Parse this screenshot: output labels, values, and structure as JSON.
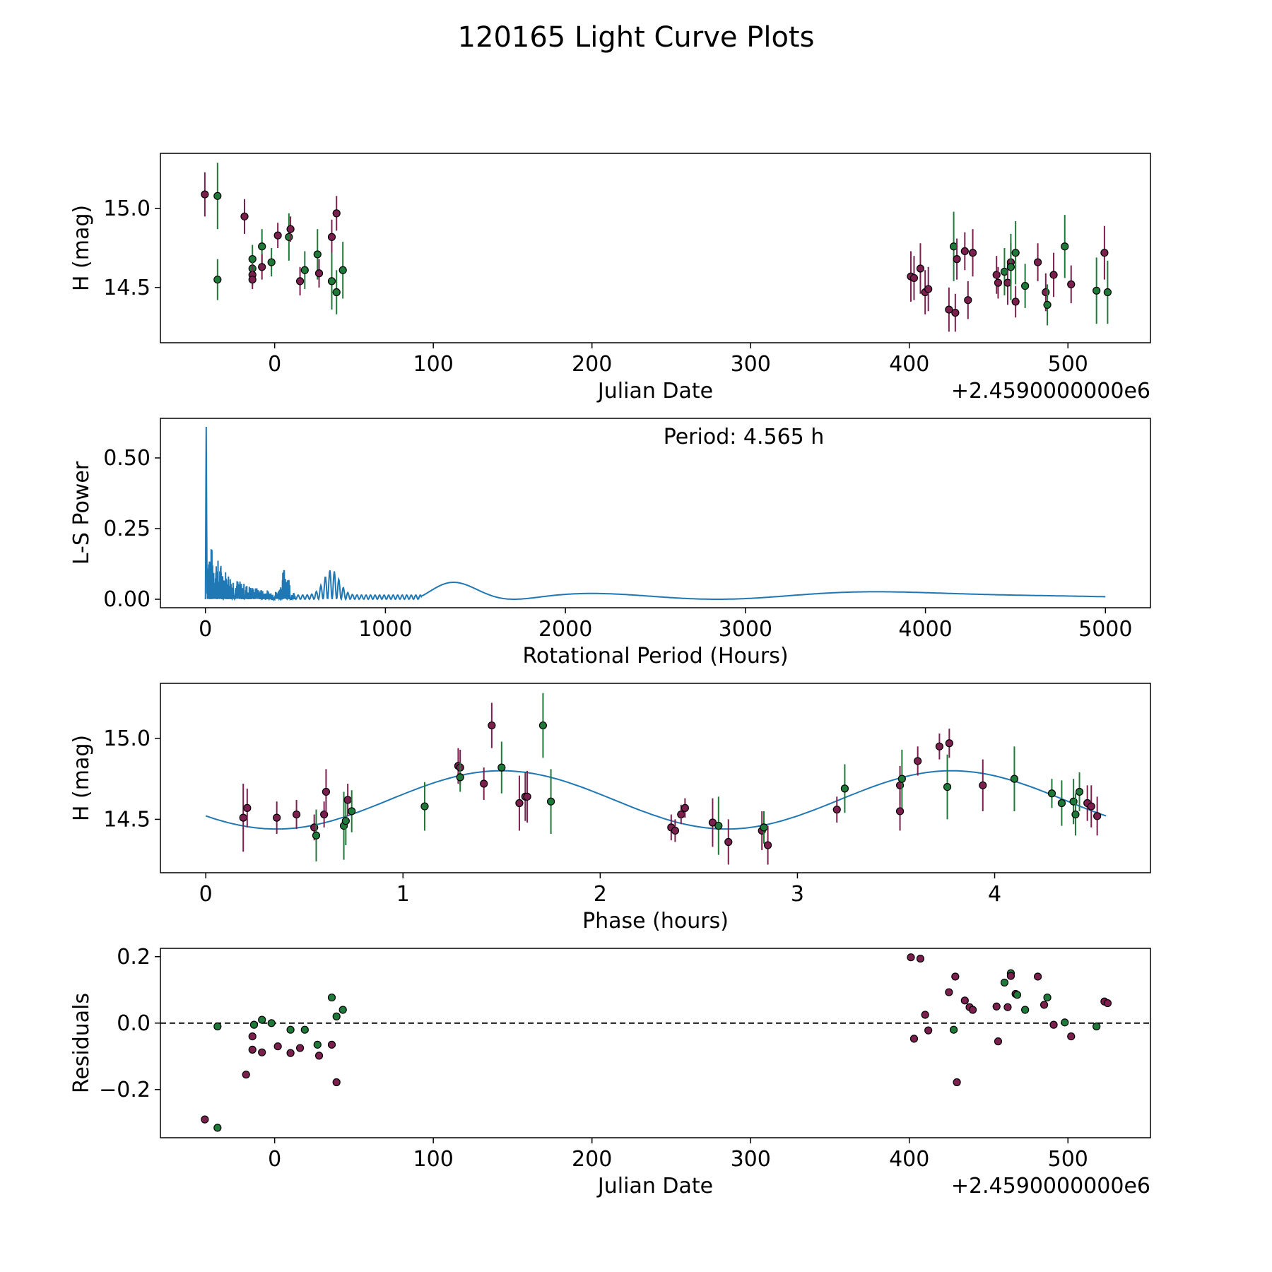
{
  "figure_title": "120165 Light Curve Plots",
  "colors": {
    "purple": "#7b1f4f",
    "green": "#1f7a3a",
    "line": "#1f77b4",
    "frame": "#000000"
  },
  "chart_data": [
    {
      "type": "scatter",
      "id": "lightcurve",
      "xlabel": "Julian Date",
      "ylabel": "H (mag)",
      "offset_label": "+2.4590000000e6",
      "xlim": [
        -72,
        552
      ],
      "ylim": [
        14.15,
        15.35
      ],
      "xticks": [
        0,
        100,
        200,
        300,
        400,
        500
      ],
      "yticks": [
        14.5,
        15.0
      ],
      "ytick_labels": [
        "14.5",
        "15.0"
      ],
      "points": [
        {
          "x": -44,
          "y": 15.09,
          "err": 0.14,
          "c": "purple"
        },
        {
          "x": -36,
          "y": 15.08,
          "err": 0.21,
          "c": "green"
        },
        {
          "x": -36,
          "y": 14.55,
          "err": 0.13,
          "c": "green"
        },
        {
          "x": -19,
          "y": 14.95,
          "err": 0.11,
          "c": "purple"
        },
        {
          "x": -14,
          "y": 14.68,
          "err": 0.09,
          "c": "green"
        },
        {
          "x": -14,
          "y": 14.62,
          "err": 0.08,
          "c": "green"
        },
        {
          "x": -14,
          "y": 14.58,
          "err": 0.07,
          "c": "purple"
        },
        {
          "x": -14,
          "y": 14.55,
          "err": 0.06,
          "c": "purple"
        },
        {
          "x": -8,
          "y": 14.76,
          "err": 0.11,
          "c": "green"
        },
        {
          "x": -8,
          "y": 14.63,
          "err": 0.08,
          "c": "purple"
        },
        {
          "x": -2,
          "y": 14.66,
          "err": 0.09,
          "c": "green"
        },
        {
          "x": 2,
          "y": 14.83,
          "err": 0.08,
          "c": "purple"
        },
        {
          "x": 9,
          "y": 14.82,
          "err": 0.15,
          "c": "green"
        },
        {
          "x": 10,
          "y": 14.87,
          "err": 0.08,
          "c": "purple"
        },
        {
          "x": 16,
          "y": 14.54,
          "err": 0.09,
          "c": "purple"
        },
        {
          "x": 19,
          "y": 14.61,
          "err": 0.12,
          "c": "green"
        },
        {
          "x": 27,
          "y": 14.71,
          "err": 0.16,
          "c": "green"
        },
        {
          "x": 28,
          "y": 14.59,
          "err": 0.09,
          "c": "purple"
        },
        {
          "x": 36,
          "y": 14.82,
          "err": 0.11,
          "c": "purple"
        },
        {
          "x": 36,
          "y": 14.54,
          "err": 0.18,
          "c": "green"
        },
        {
          "x": 39,
          "y": 14.47,
          "err": 0.14,
          "c": "green"
        },
        {
          "x": 39,
          "y": 14.97,
          "err": 0.11,
          "c": "purple"
        },
        {
          "x": 43,
          "y": 14.61,
          "err": 0.18,
          "c": "green"
        },
        {
          "x": 401,
          "y": 14.57,
          "err": 0.16,
          "c": "purple"
        },
        {
          "x": 403,
          "y": 14.56,
          "err": 0.14,
          "c": "purple"
        },
        {
          "x": 407,
          "y": 14.62,
          "err": 0.16,
          "c": "purple"
        },
        {
          "x": 410,
          "y": 14.47,
          "err": 0.14,
          "c": "purple"
        },
        {
          "x": 412,
          "y": 14.49,
          "err": 0.14,
          "c": "purple"
        },
        {
          "x": 425,
          "y": 14.36,
          "err": 0.14,
          "c": "purple"
        },
        {
          "x": 428,
          "y": 14.76,
          "err": 0.22,
          "c": "green"
        },
        {
          "x": 429,
          "y": 14.34,
          "err": 0.12,
          "c": "purple"
        },
        {
          "x": 430,
          "y": 14.68,
          "err": 0.13,
          "c": "purple"
        },
        {
          "x": 435,
          "y": 14.73,
          "err": 0.12,
          "c": "purple"
        },
        {
          "x": 437,
          "y": 14.42,
          "err": 0.12,
          "c": "purple"
        },
        {
          "x": 440,
          "y": 14.72,
          "err": 0.15,
          "c": "purple"
        },
        {
          "x": 455,
          "y": 14.58,
          "err": 0.12,
          "c": "purple"
        },
        {
          "x": 456,
          "y": 14.53,
          "err": 0.1,
          "c": "purple"
        },
        {
          "x": 460,
          "y": 14.6,
          "err": 0.15,
          "c": "green"
        },
        {
          "x": 462,
          "y": 14.53,
          "err": 0.14,
          "c": "purple"
        },
        {
          "x": 464,
          "y": 14.66,
          "err": 0.12,
          "c": "purple"
        },
        {
          "x": 464,
          "y": 14.63,
          "err": 0.21,
          "c": "green"
        },
        {
          "x": 467,
          "y": 14.41,
          "err": 0.1,
          "c": "purple"
        },
        {
          "x": 467,
          "y": 14.72,
          "err": 0.2,
          "c": "green"
        },
        {
          "x": 473,
          "y": 14.51,
          "err": 0.14,
          "c": "green"
        },
        {
          "x": 481,
          "y": 14.66,
          "err": 0.12,
          "c": "purple"
        },
        {
          "x": 486,
          "y": 14.47,
          "err": 0.12,
          "c": "purple"
        },
        {
          "x": 487,
          "y": 14.39,
          "err": 0.13,
          "c": "green"
        },
        {
          "x": 491,
          "y": 14.58,
          "err": 0.14,
          "c": "purple"
        },
        {
          "x": 498,
          "y": 14.76,
          "err": 0.2,
          "c": "green"
        },
        {
          "x": 502,
          "y": 14.52,
          "err": 0.12,
          "c": "purple"
        },
        {
          "x": 518,
          "y": 14.48,
          "err": 0.21,
          "c": "green"
        },
        {
          "x": 523,
          "y": 14.72,
          "err": 0.17,
          "c": "purple"
        },
        {
          "x": 525,
          "y": 14.47,
          "err": 0.2,
          "c": "green"
        }
      ]
    },
    {
      "type": "line",
      "id": "periodogram",
      "xlabel": "Rotational Period (Hours)",
      "ylabel": "L-S Power",
      "annotation": "Period: 4.565 h",
      "xlim": [
        -250,
        5250
      ],
      "ylim": [
        -0.03,
        0.64
      ],
      "xticks": [
        0,
        1000,
        2000,
        3000,
        4000,
        5000
      ],
      "yticks": [
        0.0,
        0.25,
        0.5
      ],
      "ytick_labels": [
        "0.00",
        "0.25",
        "0.50"
      ],
      "series": [
        {
          "name": "Lomb-Scargle power",
          "peak": {
            "x": 4.565,
            "y": 0.61
          },
          "x_range": [
            1,
            5000
          ]
        }
      ]
    },
    {
      "type": "scatter",
      "id": "phased",
      "xlabel": "Phase (hours)",
      "ylabel": "H (mag)",
      "xlim": [
        -0.23,
        4.79
      ],
      "ylim": [
        14.17,
        15.34
      ],
      "xticks": [
        0,
        1,
        2,
        3,
        4
      ],
      "yticks": [
        14.5,
        15.0
      ],
      "ytick_labels": [
        "14.5",
        "15.0"
      ],
      "model": {
        "period_hours": 4.565,
        "mean": 14.62,
        "amplitude": 0.18,
        "peak_phase": 1.5
      },
      "points": [
        {
          "x": 0.19,
          "y": 14.51,
          "err": 0.21,
          "c": "purple"
        },
        {
          "x": 0.21,
          "y": 14.57,
          "err": 0.12,
          "c": "purple"
        },
        {
          "x": 0.36,
          "y": 14.51,
          "err": 0.1,
          "c": "purple"
        },
        {
          "x": 0.46,
          "y": 14.53,
          "err": 0.09,
          "c": "purple"
        },
        {
          "x": 0.55,
          "y": 14.45,
          "err": 0.08,
          "c": "purple"
        },
        {
          "x": 0.56,
          "y": 14.4,
          "err": 0.16,
          "c": "green"
        },
        {
          "x": 0.6,
          "y": 14.53,
          "err": 0.08,
          "c": "purple"
        },
        {
          "x": 0.61,
          "y": 14.67,
          "err": 0.14,
          "c": "purple"
        },
        {
          "x": 0.7,
          "y": 14.46,
          "err": 0.21,
          "c": "green"
        },
        {
          "x": 0.71,
          "y": 14.49,
          "err": 0.15,
          "c": "green"
        },
        {
          "x": 0.72,
          "y": 14.62,
          "err": 0.1,
          "c": "purple"
        },
        {
          "x": 0.74,
          "y": 14.55,
          "err": 0.13,
          "c": "green"
        },
        {
          "x": 1.11,
          "y": 14.58,
          "err": 0.15,
          "c": "green"
        },
        {
          "x": 1.28,
          "y": 14.83,
          "err": 0.11,
          "c": "purple"
        },
        {
          "x": 1.29,
          "y": 14.82,
          "err": 0.11,
          "c": "purple"
        },
        {
          "x": 1.29,
          "y": 14.76,
          "err": 0.09,
          "c": "green"
        },
        {
          "x": 1.41,
          "y": 14.72,
          "err": 0.1,
          "c": "purple"
        },
        {
          "x": 1.45,
          "y": 15.08,
          "err": 0.14,
          "c": "purple"
        },
        {
          "x": 1.5,
          "y": 14.82,
          "err": 0.16,
          "c": "green"
        },
        {
          "x": 1.59,
          "y": 14.6,
          "err": 0.17,
          "c": "purple"
        },
        {
          "x": 1.62,
          "y": 14.64,
          "err": 0.15,
          "c": "purple"
        },
        {
          "x": 1.63,
          "y": 14.64,
          "err": 0.16,
          "c": "purple"
        },
        {
          "x": 1.71,
          "y": 15.08,
          "err": 0.2,
          "c": "green"
        },
        {
          "x": 1.75,
          "y": 14.61,
          "err": 0.2,
          "c": "green"
        },
        {
          "x": 2.36,
          "y": 14.45,
          "err": 0.08,
          "c": "purple"
        },
        {
          "x": 2.38,
          "y": 14.43,
          "err": 0.07,
          "c": "purple"
        },
        {
          "x": 2.41,
          "y": 14.53,
          "err": 0.06,
          "c": "purple"
        },
        {
          "x": 2.43,
          "y": 14.57,
          "err": 0.06,
          "c": "purple"
        },
        {
          "x": 2.57,
          "y": 14.48,
          "err": 0.15,
          "c": "purple"
        },
        {
          "x": 2.6,
          "y": 14.46,
          "err": 0.18,
          "c": "green"
        },
        {
          "x": 2.65,
          "y": 14.36,
          "err": 0.14,
          "c": "purple"
        },
        {
          "x": 2.82,
          "y": 14.43,
          "err": 0.12,
          "c": "purple"
        },
        {
          "x": 2.83,
          "y": 14.45,
          "err": 0.1,
          "c": "green"
        },
        {
          "x": 2.85,
          "y": 14.34,
          "err": 0.12,
          "c": "purple"
        },
        {
          "x": 3.2,
          "y": 14.56,
          "err": 0.08,
          "c": "purple"
        },
        {
          "x": 3.24,
          "y": 14.69,
          "err": 0.15,
          "c": "green"
        },
        {
          "x": 3.52,
          "y": 14.55,
          "err": 0.12,
          "c": "purple"
        },
        {
          "x": 3.52,
          "y": 14.71,
          "err": 0.12,
          "c": "purple"
        },
        {
          "x": 3.53,
          "y": 14.75,
          "err": 0.18,
          "c": "green"
        },
        {
          "x": 3.61,
          "y": 14.86,
          "err": 0.09,
          "c": "purple"
        },
        {
          "x": 3.72,
          "y": 14.95,
          "err": 0.08,
          "c": "purple"
        },
        {
          "x": 3.76,
          "y": 14.7,
          "err": 0.2,
          "c": "green"
        },
        {
          "x": 3.77,
          "y": 14.97,
          "err": 0.09,
          "c": "purple"
        },
        {
          "x": 3.94,
          "y": 14.71,
          "err": 0.16,
          "c": "purple"
        },
        {
          "x": 4.1,
          "y": 14.75,
          "err": 0.2,
          "c": "green"
        },
        {
          "x": 4.29,
          "y": 14.66,
          "err": 0.09,
          "c": "green"
        },
        {
          "x": 4.34,
          "y": 14.6,
          "err": 0.14,
          "c": "green"
        },
        {
          "x": 4.4,
          "y": 14.61,
          "err": 0.14,
          "c": "green"
        },
        {
          "x": 4.41,
          "y": 14.53,
          "err": 0.13,
          "c": "green"
        },
        {
          "x": 4.43,
          "y": 14.67,
          "err": 0.12,
          "c": "green"
        },
        {
          "x": 4.47,
          "y": 14.6,
          "err": 0.11,
          "c": "purple"
        },
        {
          "x": 4.49,
          "y": 14.58,
          "err": 0.13,
          "c": "purple"
        },
        {
          "x": 4.52,
          "y": 14.52,
          "err": 0.12,
          "c": "purple"
        }
      ]
    },
    {
      "type": "scatter",
      "id": "residuals",
      "xlabel": "Julian Date",
      "ylabel": "Residuals",
      "offset_label": "+2.4590000000e6",
      "xlim": [
        -72,
        552
      ],
      "ylim": [
        -0.345,
        0.225
      ],
      "xticks": [
        0,
        100,
        200,
        300,
        400,
        500
      ],
      "yticks": [
        -0.2,
        0.0,
        0.2
      ],
      "ytick_labels": [
        "−0.2",
        "0.0",
        "0.2"
      ],
      "zero_line": 0.0,
      "points": [
        {
          "x": -44,
          "y": -0.29,
          "c": "purple"
        },
        {
          "x": -36,
          "y": -0.315,
          "c": "green"
        },
        {
          "x": -36,
          "y": -0.01,
          "c": "green"
        },
        {
          "x": -18,
          "y": -0.155,
          "c": "purple"
        },
        {
          "x": -14,
          "y": -0.04,
          "c": "purple"
        },
        {
          "x": -14,
          "y": -0.08,
          "c": "purple"
        },
        {
          "x": -13,
          "y": -0.005,
          "c": "green"
        },
        {
          "x": -8,
          "y": -0.088,
          "c": "purple"
        },
        {
          "x": -8,
          "y": 0.01,
          "c": "green"
        },
        {
          "x": -2,
          "y": 0.0,
          "c": "green"
        },
        {
          "x": 2,
          "y": -0.07,
          "c": "purple"
        },
        {
          "x": 10,
          "y": -0.02,
          "c": "green"
        },
        {
          "x": 10,
          "y": -0.09,
          "c": "purple"
        },
        {
          "x": 16,
          "y": -0.075,
          "c": "purple"
        },
        {
          "x": 19,
          "y": -0.02,
          "c": "green"
        },
        {
          "x": 27,
          "y": -0.065,
          "c": "green"
        },
        {
          "x": 28,
          "y": -0.098,
          "c": "purple"
        },
        {
          "x": 36,
          "y": -0.065,
          "c": "purple"
        },
        {
          "x": 36,
          "y": 0.077,
          "c": "green"
        },
        {
          "x": 39,
          "y": 0.02,
          "c": "green"
        },
        {
          "x": 39,
          "y": -0.178,
          "c": "purple"
        },
        {
          "x": 43,
          "y": 0.04,
          "c": "green"
        },
        {
          "x": 401,
          "y": 0.198,
          "c": "purple"
        },
        {
          "x": 403,
          "y": -0.047,
          "c": "purple"
        },
        {
          "x": 407,
          "y": 0.194,
          "c": "purple"
        },
        {
          "x": 410,
          "y": 0.025,
          "c": "purple"
        },
        {
          "x": 412,
          "y": -0.022,
          "c": "purple"
        },
        {
          "x": 425,
          "y": 0.093,
          "c": "purple"
        },
        {
          "x": 428,
          "y": -0.02,
          "c": "green"
        },
        {
          "x": 429,
          "y": 0.14,
          "c": "purple"
        },
        {
          "x": 430,
          "y": -0.178,
          "c": "purple"
        },
        {
          "x": 435,
          "y": 0.068,
          "c": "purple"
        },
        {
          "x": 438,
          "y": 0.048,
          "c": "purple"
        },
        {
          "x": 440,
          "y": 0.04,
          "c": "purple"
        },
        {
          "x": 455,
          "y": 0.05,
          "c": "purple"
        },
        {
          "x": 456,
          "y": -0.055,
          "c": "purple"
        },
        {
          "x": 460,
          "y": 0.122,
          "c": "green"
        },
        {
          "x": 462,
          "y": 0.048,
          "c": "purple"
        },
        {
          "x": 464,
          "y": 0.15,
          "c": "green"
        },
        {
          "x": 464,
          "y": 0.142,
          "c": "purple"
        },
        {
          "x": 467,
          "y": 0.088,
          "c": "purple"
        },
        {
          "x": 468,
          "y": 0.085,
          "c": "green"
        },
        {
          "x": 473,
          "y": 0.04,
          "c": "green"
        },
        {
          "x": 481,
          "y": 0.14,
          "c": "purple"
        },
        {
          "x": 485,
          "y": 0.055,
          "c": "purple"
        },
        {
          "x": 487,
          "y": 0.077,
          "c": "green"
        },
        {
          "x": 491,
          "y": -0.005,
          "c": "purple"
        },
        {
          "x": 498,
          "y": 0.002,
          "c": "green"
        },
        {
          "x": 502,
          "y": -0.04,
          "c": "purple"
        },
        {
          "x": 518,
          "y": -0.01,
          "c": "green"
        },
        {
          "x": 523,
          "y": 0.065,
          "c": "purple"
        },
        {
          "x": 525,
          "y": 0.06,
          "c": "purple"
        }
      ]
    }
  ]
}
